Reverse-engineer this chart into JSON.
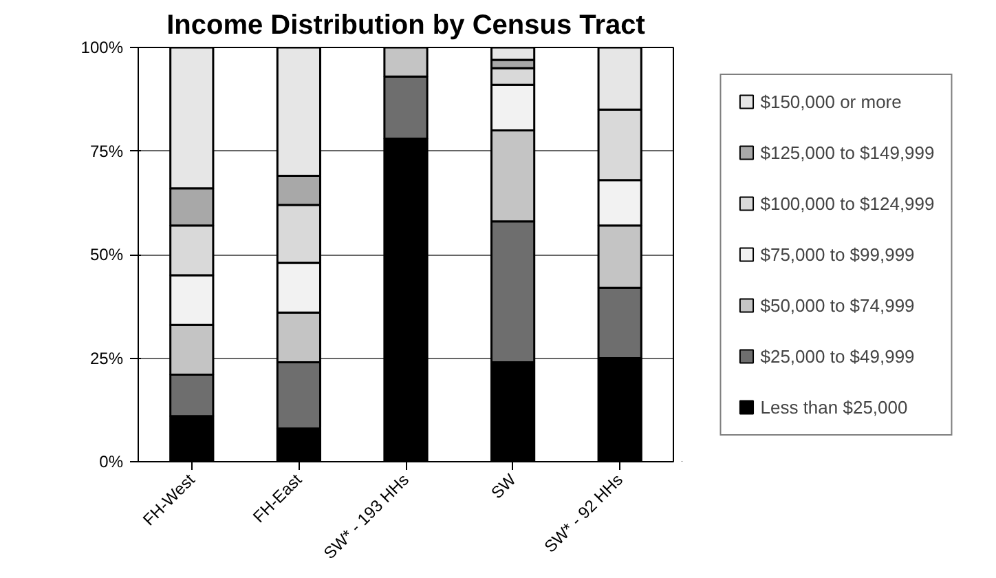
{
  "chart_data": {
    "type": "bar",
    "stacked": true,
    "title": "Income Distribution by Census Tract",
    "categories": [
      "FH-West",
      "FH-East",
      "SW* - 193 HHs",
      "SW",
      "SW* - 92 HHs"
    ],
    "series": [
      {
        "name": "Less than $25,000",
        "color": "#000000",
        "values": [
          11,
          8,
          78,
          24,
          25
        ]
      },
      {
        "name": "$25,000 to $49,999",
        "color": "#6e6e6e",
        "values": [
          10,
          16,
          15,
          34,
          17
        ]
      },
      {
        "name": "$50,000 to $74,999",
        "color": "#c4c4c4",
        "values": [
          12,
          12,
          7,
          22,
          15
        ]
      },
      {
        "name": "$75,000 to $99,999",
        "color": "#f2f2f2",
        "values": [
          12,
          12,
          0,
          11,
          11
        ]
      },
      {
        "name": "$100,000 to $124,999",
        "color": "#d9d9d9",
        "values": [
          12,
          14,
          0,
          4,
          17
        ]
      },
      {
        "name": "$125,000 to $149,999",
        "color": "#a8a8a8",
        "values": [
          9,
          7,
          0,
          2,
          0
        ]
      },
      {
        "name": "$150,000 or more",
        "color": "#e6e6e6",
        "values": [
          34,
          31,
          0,
          3,
          15
        ]
      }
    ],
    "ylim": [
      0,
      100
    ],
    "yticks": [
      {
        "value": 0,
        "label": "0%"
      },
      {
        "value": 25,
        "label": "25%"
      },
      {
        "value": 50,
        "label": "50%"
      },
      {
        "value": 75,
        "label": "75%"
      },
      {
        "value": 100,
        "label": "100%"
      }
    ],
    "grid": "y",
    "legend": "right"
  }
}
